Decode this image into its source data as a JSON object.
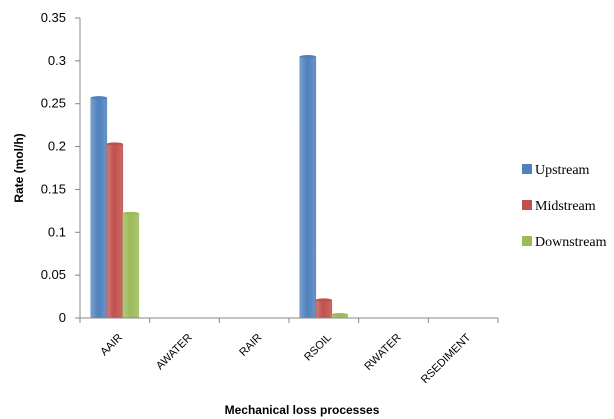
{
  "chart_data": {
    "type": "bar",
    "title": "",
    "xlabel": "Mechanical loss processes",
    "ylabel": "Rate (mol/h)",
    "ylim": [
      0,
      0.35
    ],
    "yticks": [
      "0",
      "0.05",
      "0.1",
      "0.15",
      "0.2",
      "0.25",
      "0.3",
      "0.35"
    ],
    "ytick_values": [
      0,
      0.05,
      0.1,
      0.15,
      0.2,
      0.25,
      0.3,
      0.35
    ],
    "grid": false,
    "legend_position": "right",
    "categories": [
      "AAIR",
      "AWATER",
      "RAIR",
      "RSOIL",
      "RWATER",
      "RSEDIMENT"
    ],
    "series": [
      {
        "name": "Upstream",
        "color": "#4F81BD",
        "values": [
          0.257,
          0,
          0,
          0.305,
          0,
          0
        ]
      },
      {
        "name": "Midstream",
        "color": "#C0504D",
        "values": [
          0.203,
          0,
          0,
          0.021,
          0,
          0
        ]
      },
      {
        "name": "Downstream",
        "color": "#9BBB59",
        "values": [
          0.122,
          0,
          0,
          0.004,
          0,
          0
        ]
      }
    ]
  }
}
